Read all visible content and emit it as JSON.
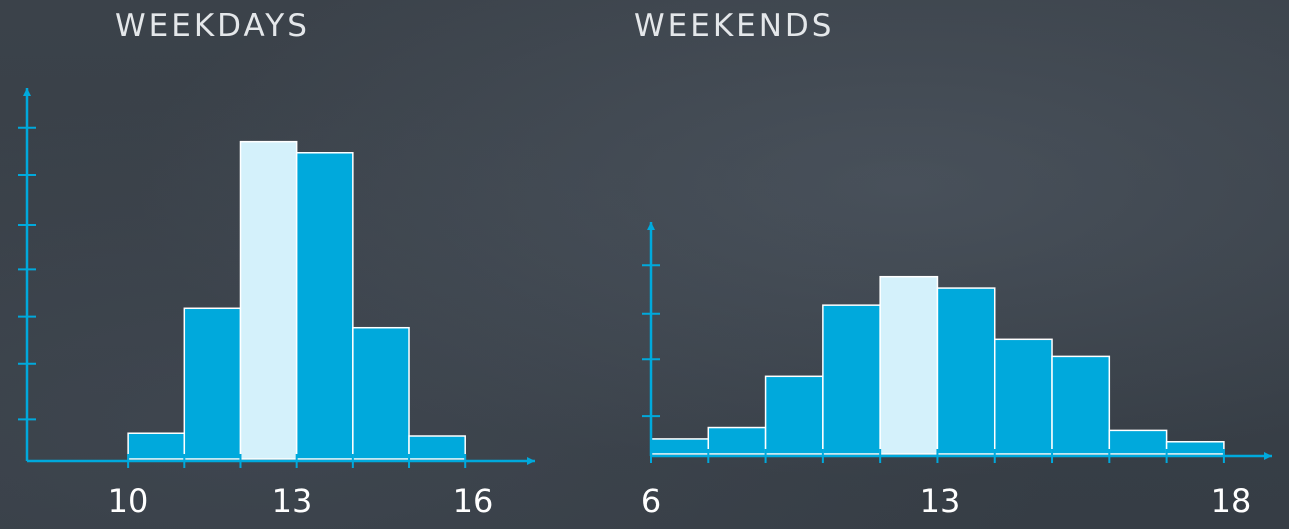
{
  "chart_data": [
    {
      "type": "bar",
      "title": "WEEKDAYS",
      "xlabel": "",
      "ylabel": "",
      "x_tick_labels": [
        {
          "label": "10",
          "value": 10
        },
        {
          "label": "13",
          "value": 13
        },
        {
          "label": "16",
          "value": 16
        }
      ],
      "bins": [
        {
          "x_start": 10,
          "x_end": 11,
          "value": 1.0,
          "highlight": false
        },
        {
          "x_start": 11,
          "x_end": 12,
          "value": 5.5,
          "highlight": false
        },
        {
          "x_start": 12,
          "x_end": 13,
          "value": 11.5,
          "highlight": true
        },
        {
          "x_start": 13,
          "x_end": 14,
          "value": 11.1,
          "highlight": false
        },
        {
          "x_start": 14,
          "x_end": 15,
          "value": 4.8,
          "highlight": false
        },
        {
          "x_start": 15,
          "x_end": 16,
          "value": 0.9,
          "highlight": false
        }
      ],
      "xlim": [
        8.2,
        17.1
      ],
      "ylim": [
        0,
        13
      ],
      "y_ticks": [
        1.5,
        3.5,
        5.2,
        6.9,
        8.5,
        10.3,
        12.0
      ],
      "grid": false
    },
    {
      "type": "bar",
      "title": "WEEKENDS",
      "xlabel": "",
      "ylabel": "",
      "x_tick_labels": [
        {
          "label": "6",
          "value": 6
        },
        {
          "label": "13",
          "value": 13
        },
        {
          "label": "18",
          "value": 18
        }
      ],
      "bins": [
        {
          "x_start": 6,
          "x_end": 7,
          "value": 0.6,
          "highlight": false
        },
        {
          "x_start": 7,
          "x_end": 8,
          "value": 1.0,
          "highlight": false
        },
        {
          "x_start": 8,
          "x_end": 9,
          "value": 2.8,
          "highlight": false
        },
        {
          "x_start": 9,
          "x_end": 10,
          "value": 5.3,
          "highlight": false
        },
        {
          "x_start": 10,
          "x_end": 11,
          "value": 6.3,
          "highlight": true
        },
        {
          "x_start": 11,
          "x_end": 12,
          "value": 5.9,
          "highlight": false
        },
        {
          "x_start": 12,
          "x_end": 13,
          "value": 4.1,
          "highlight": false
        },
        {
          "x_start": 13,
          "x_end": 14,
          "value": 3.5,
          "highlight": false
        },
        {
          "x_start": 14,
          "x_end": 15,
          "value": 0.9,
          "highlight": false
        },
        {
          "x_start": 15,
          "x_end": 16,
          "value": 0.5,
          "highlight": false
        }
      ],
      "tick_positions": [
        6,
        7,
        8,
        9,
        10,
        11,
        12,
        13,
        14,
        15,
        16
      ],
      "xlim": [
        6,
        16.7
      ],
      "ylim": [
        0,
        7.8
      ],
      "y_ticks": [
        1.4,
        3.4,
        5.0,
        6.7
      ],
      "grid": false
    }
  ],
  "colors": {
    "bar": "#00a9dc",
    "bar_highlight": "#d4f1fb",
    "bar_edge": "#ffffff",
    "axis": "#00a9dc",
    "background": "#3a4149",
    "title_text": "#e4e7ea",
    "tick_text": "#ffffff"
  }
}
